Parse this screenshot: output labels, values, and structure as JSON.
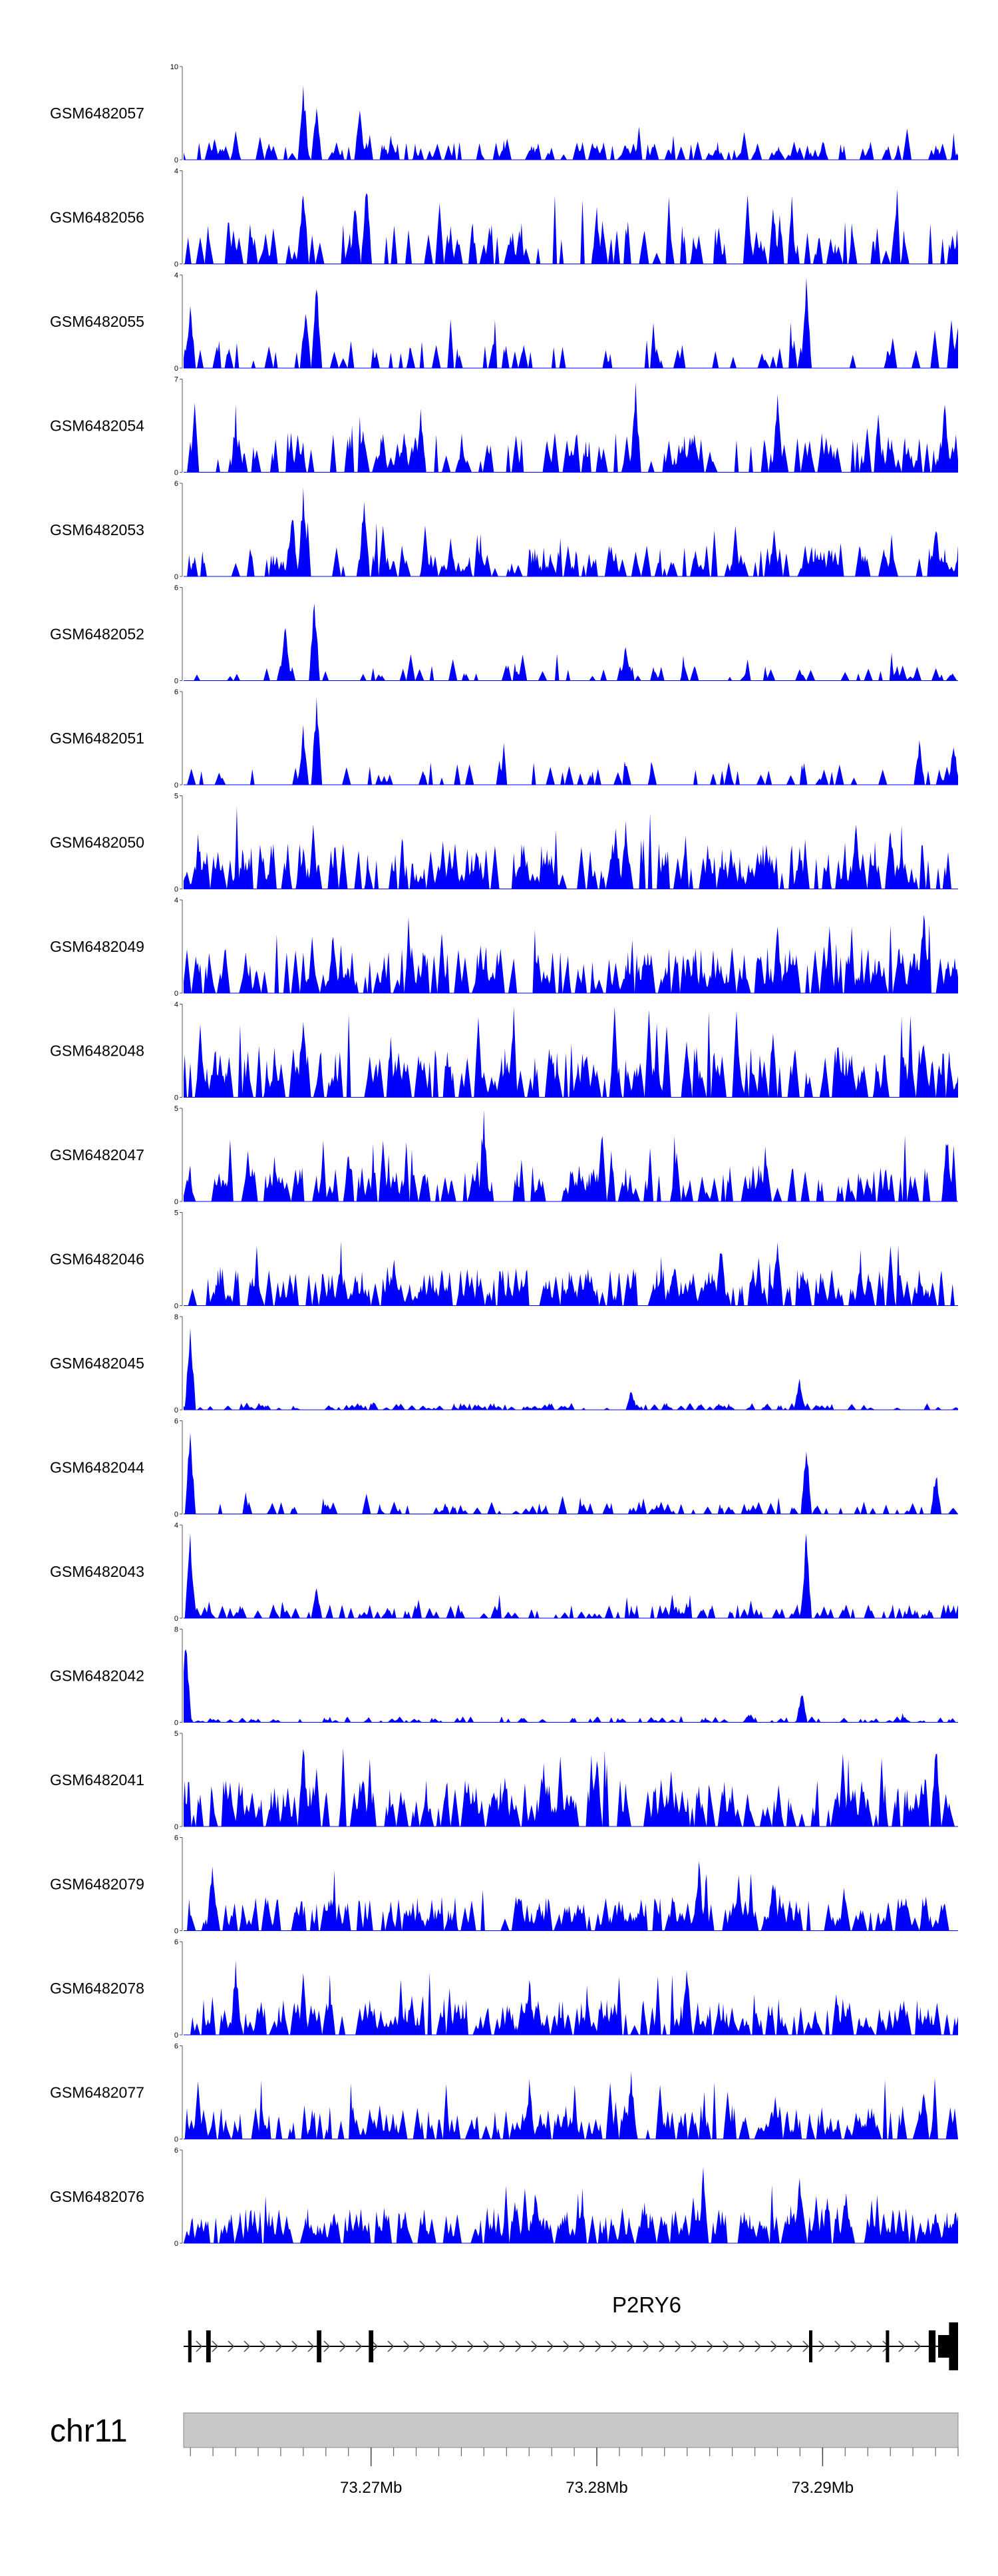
{
  "chart_data": {
    "type": "area",
    "title": "",
    "xlabel": "",
    "ylabel": "",
    "chromosome": "chr11",
    "x_range_mb": [
      73.2617,
      73.296
    ],
    "x_ticks": [
      "73.27Mb",
      "73.28Mb",
      "73.29Mb"
    ],
    "x_tick_values": [
      73.27,
      73.28,
      73.29
    ],
    "gene": {
      "name": "P2RY6",
      "strand": "+",
      "exons_mb": [
        [
          73.2619,
          73.262
        ],
        [
          73.2627,
          73.2629
        ],
        [
          73.2676,
          73.2678
        ],
        [
          73.2699,
          73.2701
        ],
        [
          73.2894,
          73.2895
        ],
        [
          73.2928,
          73.2929
        ],
        [
          73.2947,
          73.295
        ],
        [
          73.2956,
          73.296
        ]
      ]
    },
    "tracks": [
      {
        "name": "GSM6482057",
        "ymax": 10,
        "peaks": [
          [
            73.267,
            9
          ],
          [
            73.2676,
            6
          ],
          [
            73.2695,
            6
          ],
          [
            73.264,
            2
          ],
          [
            73.29,
            2
          ]
        ],
        "base": 2.0,
        "density": 0.55,
        "seed": 11
      },
      {
        "name": "GSM6482056",
        "ymax": 4,
        "peaks": [
          [
            73.267,
            4
          ],
          [
            73.2698,
            4
          ],
          [
            73.2693,
            3
          ],
          [
            73.28,
            2.5
          ]
        ],
        "base": 1.8,
        "density": 0.45,
        "seed": 12
      },
      {
        "name": "GSM6482055",
        "ymax": 4,
        "peaks": [
          [
            73.2676,
            4
          ],
          [
            73.2671,
            3
          ],
          [
            73.262,
            3
          ],
          [
            73.2893,
            4
          ],
          [
            73.296,
            2
          ]
        ],
        "base": 1.2,
        "density": 0.3,
        "seed": 13
      },
      {
        "name": "GSM6482054",
        "ymax": 7,
        "peaks": [
          [
            73.2817,
            7
          ],
          [
            73.288,
            6
          ],
          [
            73.2722,
            5
          ],
          [
            73.2954,
            6
          ]
        ],
        "base": 3.0,
        "density": 0.55,
        "seed": 14
      },
      {
        "name": "GSM6482053",
        "ymax": 6,
        "peaks": [
          [
            73.267,
            6
          ],
          [
            73.2697,
            6
          ],
          [
            73.2665,
            5
          ],
          [
            73.295,
            4
          ]
        ],
        "base": 2.0,
        "density": 0.55,
        "seed": 15
      },
      {
        "name": "GSM6482052",
        "ymax": 6,
        "peaks": [
          [
            73.2675,
            6
          ],
          [
            73.2662,
            4
          ],
          [
            73.2813,
            2.5
          ]
        ],
        "base": 1.0,
        "density": 0.25,
        "seed": 16
      },
      {
        "name": "GSM6482051",
        "ymax": 6,
        "peaks": [
          [
            73.2676,
            6
          ],
          [
            73.267,
            4
          ],
          [
            73.2943,
            3
          ],
          [
            73.2958,
            3
          ]
        ],
        "base": 1.5,
        "density": 0.25,
        "seed": 17
      },
      {
        "name": "GSM6482050",
        "ymax": 5,
        "peaks": [
          [
            73.2813,
            4
          ],
          [
            73.2915,
            4
          ],
          [
            73.293,
            4
          ]
        ],
        "base": 2.5,
        "density": 0.8,
        "seed": 18
      },
      {
        "name": "GSM6482049",
        "ymax": 4,
        "peaks": [
          [
            73.2945,
            4
          ],
          [
            73.2683,
            3
          ],
          [
            73.288,
            3
          ]
        ],
        "base": 2.0,
        "density": 0.8,
        "seed": 19
      },
      {
        "name": "GSM6482048",
        "ymax": 4,
        "peaks": [
          [
            73.267,
            4
          ],
          [
            73.284,
            3
          ],
          [
            73.2945,
            3
          ]
        ],
        "base": 2.2,
        "density": 0.8,
        "seed": 20
      },
      {
        "name": "GSM6482047",
        "ymax": 5,
        "peaks": [
          [
            73.275,
            5
          ],
          [
            73.269,
            3
          ],
          [
            73.2955,
            4
          ]
        ],
        "base": 2.0,
        "density": 0.65,
        "seed": 21
      },
      {
        "name": "GSM6482046",
        "ymax": 5,
        "peaks": [
          [
            73.288,
            4
          ],
          [
            73.2855,
            4
          ],
          [
            73.271,
            3
          ]
        ],
        "base": 2.0,
        "density": 0.85,
        "seed": 22
      },
      {
        "name": "GSM6482045",
        "ymax": 8,
        "peaks": [
          [
            73.262,
            8
          ],
          [
            73.289,
            3
          ],
          [
            73.2815,
            2
          ]
        ],
        "base": 0.6,
        "density": 0.55,
        "seed": 23
      },
      {
        "name": "GSM6482044",
        "ymax": 6,
        "peaks": [
          [
            73.262,
            6
          ],
          [
            73.2893,
            5
          ],
          [
            73.295,
            3
          ]
        ],
        "base": 0.8,
        "density": 0.35,
        "seed": 24
      },
      {
        "name": "GSM6482043",
        "ymax": 4,
        "peaks": [
          [
            73.262,
            4
          ],
          [
            73.2893,
            4
          ],
          [
            73.2676,
            1.5
          ]
        ],
        "base": 0.6,
        "density": 0.5,
        "seed": 25
      },
      {
        "name": "GSM6482042",
        "ymax": 8,
        "peaks": [
          [
            73.2618,
            8
          ],
          [
            73.2891,
            3
          ]
        ],
        "base": 0.5,
        "density": 0.5,
        "seed": 26
      },
      {
        "name": "GSM6482041",
        "ymax": 5,
        "peaks": [
          [
            73.267,
            5
          ],
          [
            73.28,
            4
          ],
          [
            73.295,
            5
          ]
        ],
        "base": 2.5,
        "density": 0.8,
        "seed": 27
      },
      {
        "name": "GSM6482079",
        "ymax": 6,
        "peaks": [
          [
            73.263,
            5
          ],
          [
            73.2845,
            5
          ],
          [
            73.2878,
            4
          ]
        ],
        "base": 2.2,
        "density": 0.85,
        "seed": 28
      },
      {
        "name": "GSM6482078",
        "ymax": 6,
        "peaks": [
          [
            73.264,
            5
          ],
          [
            73.284,
            5
          ],
          [
            73.277,
            4
          ]
        ],
        "base": 2.3,
        "density": 0.85,
        "seed": 29
      },
      {
        "name": "GSM6482077",
        "ymax": 6,
        "peaks": [
          [
            73.2815,
            5
          ],
          [
            73.277,
            4
          ],
          [
            73.2945,
            4
          ]
        ],
        "base": 2.2,
        "density": 0.85,
        "seed": 30
      },
      {
        "name": "GSM6482076",
        "ymax": 6,
        "peaks": [
          [
            73.289,
            5
          ],
          [
            73.2847,
            5
          ],
          [
            73.2773,
            4
          ]
        ],
        "base": 2.3,
        "density": 0.85,
        "seed": 31
      }
    ],
    "fill_color": "#0000ff",
    "ideogram_color": "#c8c8c8"
  }
}
